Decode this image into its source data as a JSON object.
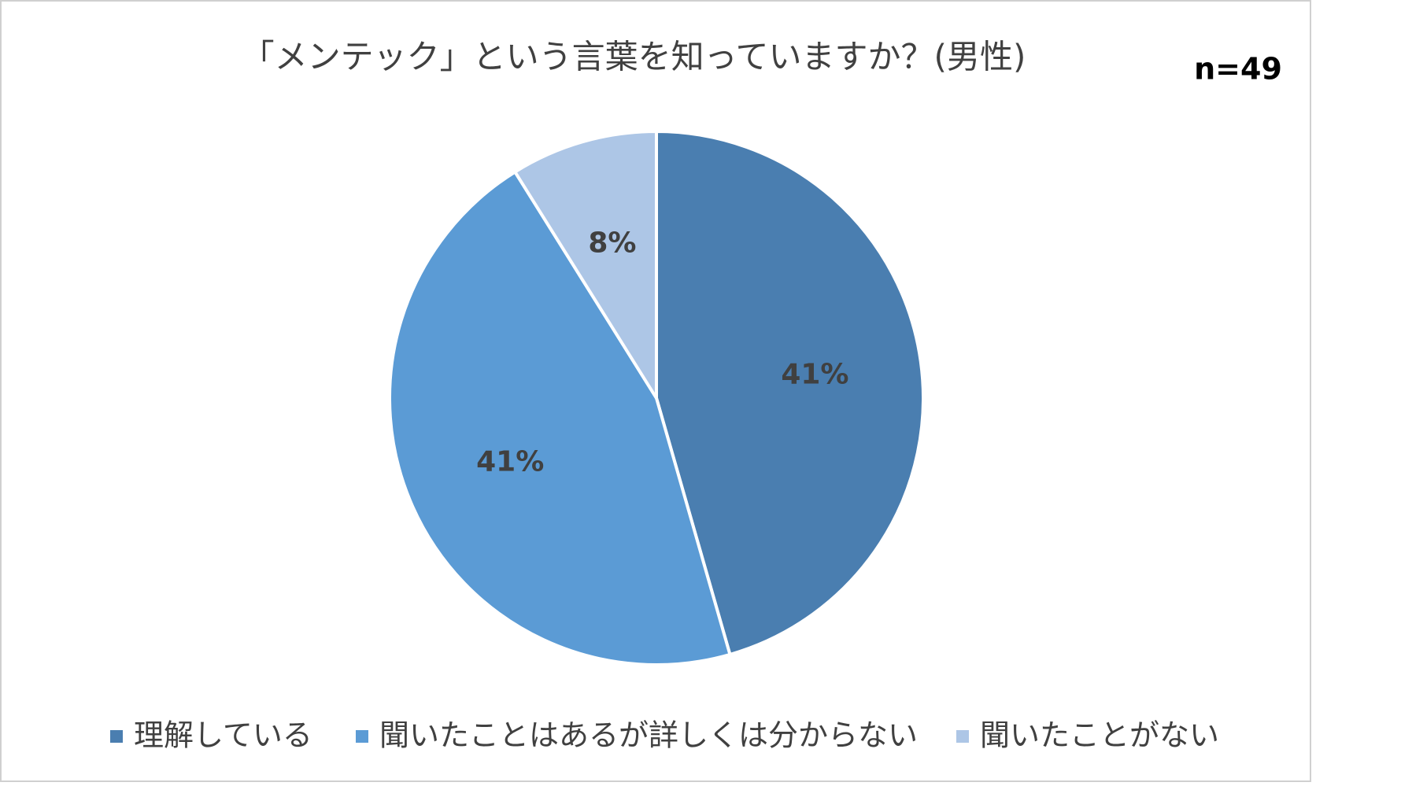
{
  "chart_data": {
    "type": "pie",
    "title": "「メンテック」という言葉を知っていますか？(男性)",
    "annotation": "n=49",
    "categories": [
      "理解している",
      "聞いたことはあるが詳しくは分からない",
      "聞いたことがない"
    ],
    "values": [
      41,
      41,
      8
    ],
    "value_labels": [
      "41%",
      "41%",
      "8%"
    ],
    "colors": [
      "#4a7eb0",
      "#5b9bd5",
      "#adc6e6"
    ],
    "legend": "bottom"
  }
}
